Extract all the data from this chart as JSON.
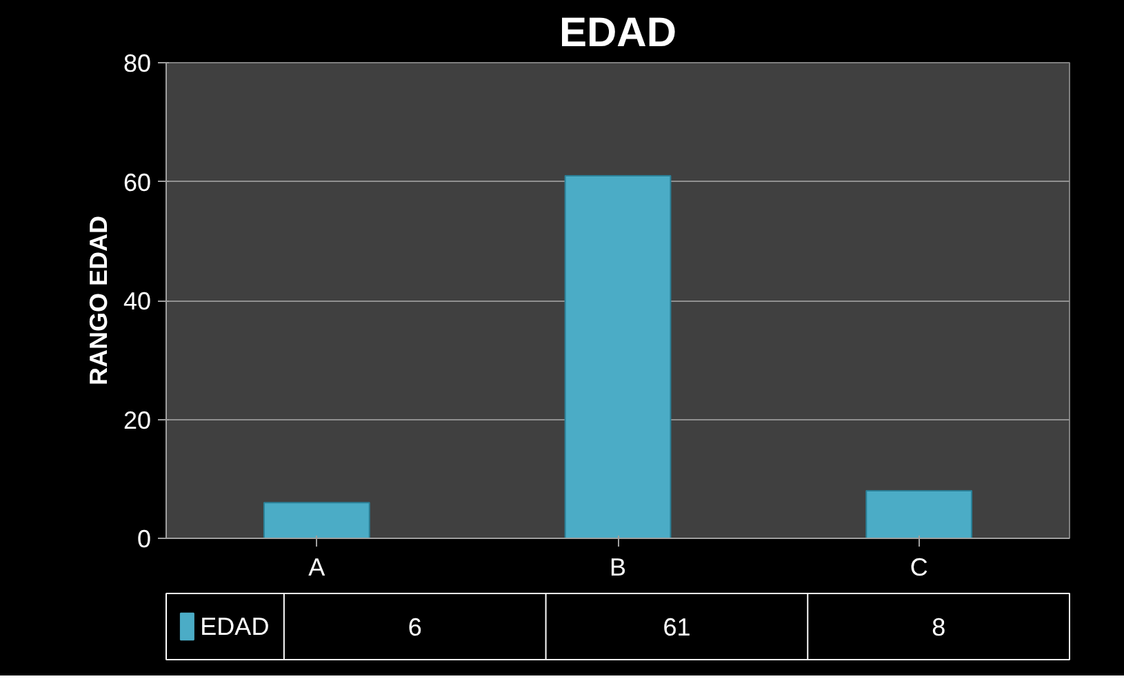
{
  "chart_data": {
    "type": "bar",
    "title": "EDAD",
    "ylabel": "RANGO EDAD",
    "categories": [
      "A",
      "B",
      "C"
    ],
    "series": [
      {
        "name": "EDAD",
        "color": "#4bacc6",
        "values": [
          6,
          61,
          8
        ]
      }
    ],
    "ylim": [
      0,
      80
    ],
    "yticks": [
      0,
      20,
      40,
      60,
      80
    ],
    "grid": "y",
    "data_labels": true,
    "legend": "bottom"
  }
}
